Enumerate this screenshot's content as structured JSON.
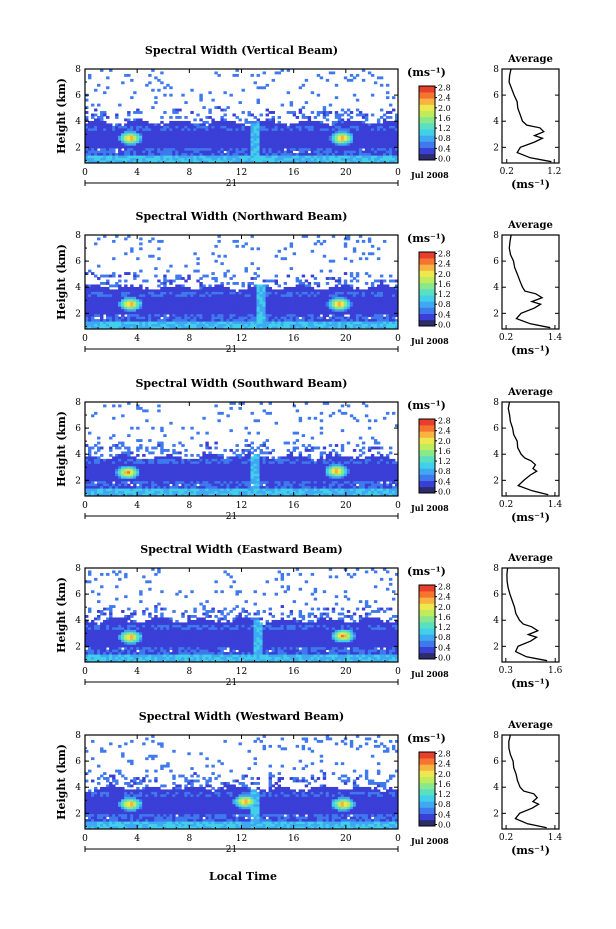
{
  "figure": {
    "xlabel": "Local Time",
    "ylabel": "Height (km)",
    "unit": "(ms⁻¹)",
    "date_label": "Jul 2008",
    "day_label": "21",
    "avg_title": "Average",
    "avg_unit": "(ms⁻¹)"
  },
  "colorscale": [
    "#2c2c6c",
    "#3a3fd6",
    "#3f79ee",
    "#3fa8f2",
    "#40d0ea",
    "#58e0c0",
    "#8ae88c",
    "#c0ec5c",
    "#eee850",
    "#f9b340",
    "#f5742f",
    "#e83e2c"
  ],
  "chart_data": [
    {
      "type": "heatmap",
      "title": "Spectral Width (Vertical Beam)",
      "x_ticks": [
        "0",
        "4",
        "8",
        "12",
        "16",
        "20",
        "0"
      ],
      "xlim": [
        0,
        24
      ],
      "y_ticks": [
        "2",
        "4",
        "6",
        "8"
      ],
      "ylim": [
        0.8,
        8
      ],
      "colorbar_ticks": [
        "0.0",
        "0.4",
        "0.8",
        "1.2",
        "1.6",
        "2.0",
        "2.4",
        "2.8"
      ],
      "features": {
        "echo_top_km": 3.9,
        "hot_spots": [
          {
            "hour": 3.5,
            "km": 2.7
          },
          {
            "hour": 19.7,
            "km": 2.7
          }
        ],
        "column_hour": 13.0
      },
      "average_profile": {
        "x_ticks": [
          "0.2",
          "1.2"
        ],
        "xlim": [
          0.1,
          1.3
        ],
        "y_ticks": [
          "2",
          "4",
          "6",
          "8"
        ],
        "ylim": [
          0.8,
          8
        ],
        "height_km": [
          0.9,
          1.2,
          1.6,
          2.0,
          2.4,
          2.7,
          2.9,
          3.2,
          3.5,
          3.7,
          4.0,
          4.5,
          5.0,
          5.5,
          6.0,
          6.5,
          7.0,
          7.5,
          8.0
        ],
        "width_ms": [
          1.15,
          0.7,
          0.42,
          0.5,
          0.78,
          0.95,
          0.8,
          0.98,
          0.9,
          0.62,
          0.55,
          0.48,
          0.45,
          0.4,
          0.36,
          0.3,
          0.26,
          0.26,
          0.3
        ]
      }
    },
    {
      "type": "heatmap",
      "title": "Spectral Width (Northward Beam)",
      "x_ticks": [
        "0",
        "4",
        "8",
        "12",
        "16",
        "20",
        "0"
      ],
      "xlim": [
        0,
        24
      ],
      "y_ticks": [
        "2",
        "4",
        "6",
        "8"
      ],
      "ylim": [
        0.8,
        8
      ],
      "colorbar_ticks": [
        "0.0",
        "0.4",
        "0.8",
        "1.2",
        "1.6",
        "2.0",
        "2.4",
        "2.8"
      ],
      "features": {
        "echo_top_km": 4.0,
        "hot_spots": [
          {
            "hour": 3.5,
            "km": 2.7
          },
          {
            "hour": 19.5,
            "km": 2.7
          }
        ],
        "column_hour": 13.5
      },
      "average_profile": {
        "x_ticks": [
          "0.2",
          "1.4"
        ],
        "xlim": [
          0.1,
          1.5
        ],
        "y_ticks": [
          "2",
          "4",
          "6",
          "8"
        ],
        "ylim": [
          0.8,
          8
        ],
        "height_km": [
          0.9,
          1.2,
          1.6,
          2.0,
          2.4,
          2.7,
          2.9,
          3.2,
          3.5,
          3.7,
          4.0,
          4.5,
          5.0,
          5.5,
          6.0,
          6.5,
          7.0,
          7.5,
          8.0
        ],
        "width_ms": [
          1.3,
          0.8,
          0.45,
          0.55,
          0.88,
          1.05,
          0.85,
          1.1,
          0.95,
          0.68,
          0.6,
          0.52,
          0.48,
          0.42,
          0.38,
          0.32,
          0.28,
          0.28,
          0.32
        ]
      }
    },
    {
      "type": "heatmap",
      "title": "Spectral Width (Southward Beam)",
      "x_ticks": [
        "0",
        "4",
        "8",
        "12",
        "16",
        "20",
        "0"
      ],
      "xlim": [
        0,
        24
      ],
      "y_ticks": [
        "2",
        "4",
        "6",
        "8"
      ],
      "ylim": [
        0.8,
        8
      ],
      "colorbar_ticks": [
        "0.0",
        "0.4",
        "0.8",
        "1.2",
        "1.6",
        "2.0",
        "2.4",
        "2.8"
      ],
      "features": {
        "echo_top_km": 3.8,
        "hot_spots": [
          {
            "hour": 3.3,
            "km": 2.6
          },
          {
            "hour": 19.3,
            "km": 2.7
          }
        ],
        "column_hour": 13.0
      },
      "average_profile": {
        "x_ticks": [
          "0.2",
          "1.4"
        ],
        "xlim": [
          0.1,
          1.5
        ],
        "y_ticks": [
          "2",
          "4",
          "6",
          "8"
        ],
        "ylim": [
          0.8,
          8
        ],
        "height_km": [
          0.9,
          1.2,
          1.6,
          2.0,
          2.4,
          2.7,
          2.9,
          3.2,
          3.5,
          3.7,
          4.0,
          4.5,
          5.0,
          5.5,
          6.0,
          6.5,
          7.0,
          7.5,
          8.0
        ],
        "width_ms": [
          1.25,
          0.85,
          0.5,
          0.62,
          0.8,
          0.95,
          0.88,
          0.92,
          0.8,
          0.66,
          0.58,
          0.5,
          0.46,
          0.4,
          0.36,
          0.3,
          0.27,
          0.26,
          0.3
        ]
      }
    },
    {
      "type": "heatmap",
      "title": "Spectral Width (Eastward Beam)",
      "x_ticks": [
        "0",
        "4",
        "8",
        "12",
        "16",
        "20",
        "0"
      ],
      "xlim": [
        0,
        24
      ],
      "y_ticks": [
        "2",
        "4",
        "6",
        "8"
      ],
      "ylim": [
        0.8,
        8
      ],
      "colorbar_ticks": [
        "0.0",
        "0.4",
        "0.8",
        "1.2",
        "1.6",
        "2.0",
        "2.4",
        "2.8"
      ],
      "features": {
        "echo_top_km": 4.0,
        "hot_spots": [
          {
            "hour": 3.5,
            "km": 2.7
          },
          {
            "hour": 19.8,
            "km": 2.8
          }
        ],
        "column_hour": 13.3
      },
      "average_profile": {
        "x_ticks": [
          "0.3",
          "1.6"
        ],
        "xlim": [
          0.2,
          1.7
        ],
        "y_ticks": [
          "2",
          "4",
          "6",
          "8"
        ],
        "ylim": [
          0.8,
          8
        ],
        "height_km": [
          0.9,
          1.2,
          1.6,
          2.0,
          2.4,
          2.7,
          2.9,
          3.2,
          3.5,
          3.7,
          4.0,
          4.5,
          5.0,
          5.5,
          6.0,
          6.5,
          7.0,
          7.5,
          8.0
        ],
        "width_ms": [
          1.4,
          0.85,
          0.55,
          0.62,
          0.95,
          1.1,
          0.9,
          1.15,
          1.0,
          0.75,
          0.66,
          0.58,
          0.52,
          0.46,
          0.42,
          0.36,
          0.33,
          0.32,
          0.36
        ]
      }
    },
    {
      "type": "heatmap",
      "title": "Spectral Width (Westward Beam)",
      "x_ticks": [
        "0",
        "4",
        "8",
        "12",
        "16",
        "20",
        "0"
      ],
      "xlim": [
        0,
        24
      ],
      "y_ticks": [
        "2",
        "4",
        "6",
        "8"
      ],
      "ylim": [
        0.8,
        8
      ],
      "colorbar_ticks": [
        "0.0",
        "0.4",
        "0.8",
        "1.2",
        "1.6",
        "2.0",
        "2.4",
        "2.8"
      ],
      "features": {
        "echo_top_km": 3.9,
        "hot_spots": [
          {
            "hour": 3.5,
            "km": 2.7
          },
          {
            "hour": 12.3,
            "km": 2.9
          },
          {
            "hour": 19.8,
            "km": 2.7
          }
        ],
        "column_hour": 13.0
      },
      "average_profile": {
        "x_ticks": [
          "0.2",
          "1.4"
        ],
        "xlim": [
          0.1,
          1.5
        ],
        "y_ticks": [
          "2",
          "4",
          "6",
          "8"
        ],
        "ylim": [
          0.8,
          8
        ],
        "height_km": [
          0.9,
          1.2,
          1.6,
          2.0,
          2.4,
          2.7,
          2.9,
          3.2,
          3.5,
          3.7,
          4.0,
          4.5,
          5.0,
          5.5,
          6.0,
          6.5,
          7.0,
          7.5,
          8.0
        ],
        "width_ms": [
          1.2,
          0.72,
          0.45,
          0.55,
          0.85,
          0.98,
          0.84,
          0.95,
          0.88,
          0.64,
          0.56,
          0.5,
          0.46,
          0.4,
          0.36,
          0.31,
          0.27,
          0.26,
          0.3
        ]
      }
    }
  ]
}
